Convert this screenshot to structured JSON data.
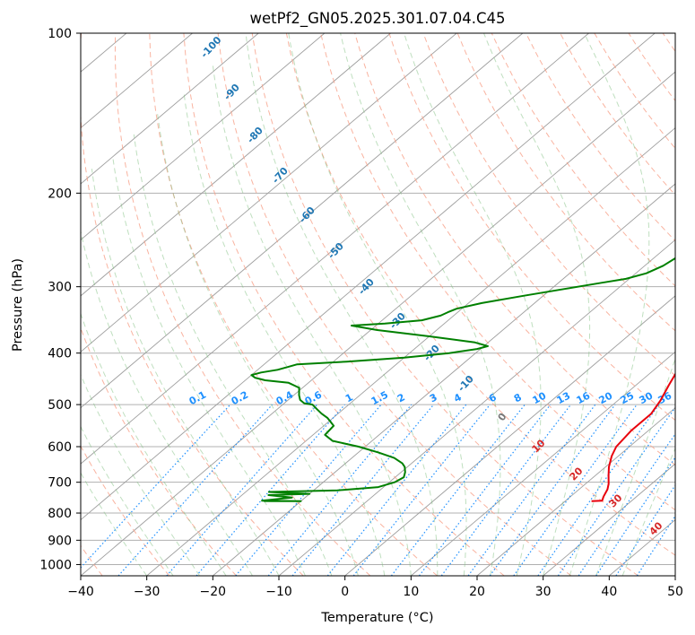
{
  "chart_data": {
    "type": "skew-t",
    "title": "wetPf2_GN05.2025.301.07.04.C45",
    "xlabel": "Temperature (°C)",
    "ylabel": "Pressure (hPa)",
    "xlim": [
      -40,
      50
    ],
    "ylim": [
      1050,
      100
    ],
    "x_ticks": [
      -40,
      -30,
      -20,
      -10,
      0,
      10,
      20,
      30,
      40,
      50
    ],
    "x_tick_labels": [
      "−40",
      "−30",
      "−20",
      "−10",
      "0",
      "10",
      "20",
      "30",
      "40",
      "50"
    ],
    "y_ticks": [
      1000,
      900,
      800,
      700,
      600,
      500,
      400,
      300,
      200,
      100
    ],
    "y_tick_labels": [
      "1000",
      "900",
      "800",
      "700",
      "600",
      "500",
      "400",
      "300",
      "200",
      "100"
    ],
    "series": [
      {
        "name": "Temperature",
        "color": "#e8000b",
        "points": [
          [
            24,
            760
          ],
          [
            25.5,
            758
          ],
          [
            25,
            745
          ],
          [
            24.3,
            722
          ],
          [
            23.5,
            705
          ],
          [
            22,
            680
          ],
          [
            20.5,
            655
          ],
          [
            19,
            625
          ],
          [
            18,
            600
          ],
          [
            17.4,
            560
          ],
          [
            17.4,
            520
          ],
          [
            16.4,
            490
          ],
          [
            15,
            460
          ],
          [
            13.6,
            430
          ],
          [
            11.6,
            400
          ],
          [
            10.4,
            380
          ],
          [
            9.6,
            360
          ],
          [
            8.6,
            340
          ],
          [
            7.2,
            320
          ],
          [
            5.4,
            300
          ],
          [
            2.8,
            275
          ],
          [
            0.2,
            250
          ],
          [
            -1.4,
            225
          ],
          [
            -2.0,
            200
          ],
          [
            -1.8,
            185
          ],
          [
            -1.2,
            175
          ],
          [
            -0.6,
            165
          ],
          [
            1.0,
            155
          ],
          [
            2.6,
            145
          ],
          [
            4.2,
            135
          ],
          [
            5.6,
            125
          ],
          [
            6.2,
            118
          ],
          [
            6.0,
            110
          ],
          [
            5.3,
            103
          ],
          [
            4.8,
            100
          ]
        ]
      },
      {
        "name": "Dewpoint",
        "color": "#008000",
        "points": [
          [
            -25.6,
            760
          ],
          [
            -20,
            760
          ],
          [
            -26,
            758
          ],
          [
            -22,
            748
          ],
          [
            -26,
            740
          ],
          [
            -20,
            736
          ],
          [
            -26.5,
            730
          ],
          [
            -16.4,
            725
          ],
          [
            -10.8,
            715
          ],
          [
            -9.2,
            700
          ],
          [
            -8.7,
            685
          ],
          [
            -9.4,
            670
          ],
          [
            -10.4,
            655
          ],
          [
            -11.4,
            645
          ],
          [
            -13.6,
            630
          ],
          [
            -17,
            615
          ],
          [
            -21,
            600
          ],
          [
            -26,
            585
          ],
          [
            -28.2,
            570
          ],
          [
            -28.5,
            548
          ],
          [
            -30.8,
            530
          ],
          [
            -32.5,
            520
          ],
          [
            -34,
            510
          ],
          [
            -35.5,
            500
          ],
          [
            -37,
            497
          ],
          [
            -38.2,
            490
          ],
          [
            -39.2,
            480
          ],
          [
            -40.5,
            465
          ],
          [
            -43,
            455
          ],
          [
            -47,
            450
          ],
          [
            -49,
            445
          ],
          [
            -50,
            440
          ],
          [
            -49,
            435
          ],
          [
            -47,
            430
          ],
          [
            -46,
            425
          ],
          [
            -45,
            420
          ],
          [
            -38,
            415
          ],
          [
            -30,
            408
          ],
          [
            -24,
            400
          ],
          [
            -20.5,
            393
          ],
          [
            -19.4,
            388
          ],
          [
            -22,
            382
          ],
          [
            -30,
            372
          ],
          [
            -39,
            362
          ],
          [
            -43.7,
            355
          ],
          [
            -39,
            352
          ],
          [
            -34,
            347
          ],
          [
            -32,
            340
          ],
          [
            -31.5,
            335
          ],
          [
            -30.8,
            330
          ],
          [
            -28,
            322
          ],
          [
            -23,
            312
          ],
          [
            -18,
            303
          ],
          [
            -13.5,
            295
          ],
          [
            -10.5,
            290
          ],
          [
            -8.4,
            283
          ],
          [
            -7.2,
            274
          ],
          [
            -6.6,
            263
          ],
          [
            -6.2,
            252
          ],
          [
            -6.2,
            240
          ],
          [
            -6.5,
            228
          ],
          [
            -7.0,
            216
          ],
          [
            -7.7,
            205
          ],
          [
            -8.4,
            196
          ],
          [
            -9.2,
            188
          ],
          [
            -10.3,
            180
          ],
          [
            -11.4,
            174
          ],
          [
            -12.2,
            168
          ],
          [
            -12.8,
            160
          ],
          [
            -12.6,
            153
          ],
          [
            -12.0,
            146
          ],
          [
            -11.5,
            140
          ],
          [
            -10.8,
            134
          ],
          [
            -9.6,
            127
          ],
          [
            -8.0,
            120
          ],
          [
            -6.0,
            113
          ],
          [
            -4.2,
            107
          ],
          [
            -2.5,
            102
          ],
          [
            -1.9,
            100
          ]
        ]
      }
    ],
    "dry_adiabat_labels": [
      "-100",
      "-90",
      "-80",
      "-70",
      "-60",
      "-50",
      "-40",
      "-30",
      "-20",
      "-10"
    ],
    "mixing_ratio_labels": [
      "0.1",
      "0.2",
      "0.4",
      "0.6",
      "1",
      "1.5",
      "2",
      "3",
      "4",
      "6",
      "8",
      "10",
      "13",
      "16",
      "20",
      "25",
      "30",
      "36"
    ],
    "moist_adiabat_labels": [
      "0",
      "10",
      "20",
      "30",
      "40"
    ]
  }
}
